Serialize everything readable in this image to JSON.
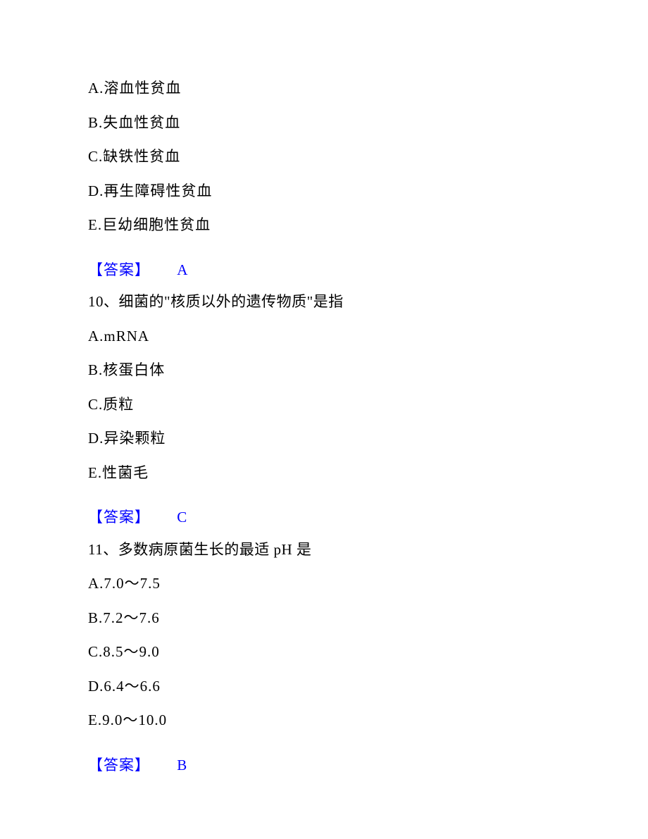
{
  "q9": {
    "options": {
      "A": "A.溶血性贫血",
      "B": "B.失血性贫血",
      "C": "C.缺铁性贫血",
      "D": "D.再生障碍性贫血",
      "E": "E.巨幼细胞性贫血"
    },
    "answer_label": "【答案】",
    "answer_letter": "A"
  },
  "q10": {
    "stem": "10、细菌的\"核质以外的遗传物质\"是指",
    "options": {
      "A": "A.mRNA",
      "B": "B.核蛋白体",
      "C": "C.质粒",
      "D": "D.异染颗粒",
      "E": "E.性菌毛"
    },
    "answer_label": "【答案】",
    "answer_letter": "C"
  },
  "q11": {
    "stem": "11、多数病原菌生长的最适 pH 是",
    "options": {
      "A": "A.7.0～7.5",
      "B": "B.7.2～7.6",
      "C": "C.8.5～9.0",
      "D": "D.6.4～6.6",
      "E": "E.9.0～10.0"
    },
    "answer_label": "【答案】",
    "answer_letter": "B"
  }
}
